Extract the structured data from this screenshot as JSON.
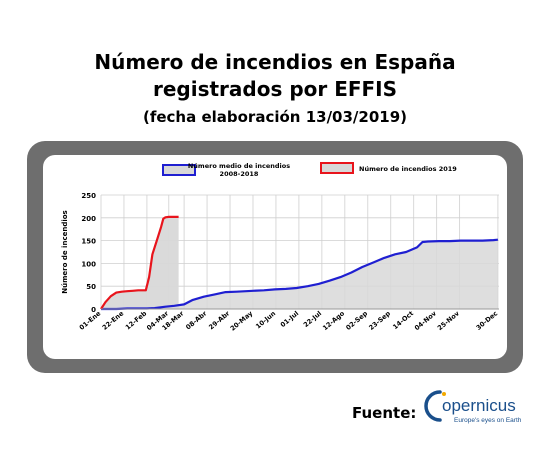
{
  "header": {
    "title_line1": "Número de incendios en España",
    "title_line2": "registrados por EFFIS",
    "subtitle": "(fecha elaboración 13/03/2019)"
  },
  "footer": {
    "source_label": "Fuente:",
    "logo_text": "opernicus",
    "logo_tagline": "Europe's eyes on Earth"
  },
  "colors": {
    "frame": "#6e6e6e",
    "mean_line": "#1f1fd1",
    "current_line": "#e8141c",
    "area_fill": "#d8d8d8",
    "logo_blue": "#1a4f8b"
  },
  "chart_data": {
    "type": "line",
    "ylabel": "Número  de incendios",
    "ylim": [
      0,
      250
    ],
    "yticks": [
      0,
      50,
      100,
      150,
      200,
      250
    ],
    "xlim": [
      1,
      365
    ],
    "xticks": [
      {
        "day": 1,
        "label": "01-Ene"
      },
      {
        "day": 22,
        "label": "22-Ene"
      },
      {
        "day": 43,
        "label": "12-Feb"
      },
      {
        "day": 63,
        "label": "04-Mar"
      },
      {
        "day": 77,
        "label": "18-Mar"
      },
      {
        "day": 98,
        "label": "08-Abr"
      },
      {
        "day": 119,
        "label": "29-Abr"
      },
      {
        "day": 140,
        "label": "20-May"
      },
      {
        "day": 161,
        "label": "10-Jun"
      },
      {
        "day": 182,
        "label": "01-Jul"
      },
      {
        "day": 203,
        "label": "22-Jul"
      },
      {
        "day": 224,
        "label": "12-Ago"
      },
      {
        "day": 245,
        "label": "02-Sep"
      },
      {
        "day": 266,
        "label": "23-Sep"
      },
      {
        "day": 287,
        "label": "14-Oct"
      },
      {
        "day": 308,
        "label": "04-Nov"
      },
      {
        "day": 329,
        "label": "25-Nov"
      },
      {
        "day": 364,
        "label": "30-Dec"
      }
    ],
    "grid": true,
    "legend_position": "top",
    "series": [
      {
        "name": "Número medio de incendios 2008-2018",
        "style": "area",
        "x": [
          1,
          15,
          25,
          35,
          43,
          50,
          60,
          68,
          77,
          85,
          95,
          105,
          115,
          125,
          140,
          150,
          160,
          170,
          180,
          190,
          200,
          210,
          220,
          230,
          240,
          250,
          260,
          270,
          280,
          290,
          295,
          300,
          310,
          320,
          330,
          340,
          350,
          360,
          364
        ],
        "values": [
          0,
          0,
          1,
          1,
          1,
          2,
          5,
          7,
          10,
          20,
          27,
          32,
          37,
          38,
          40,
          41,
          43,
          44,
          46,
          50,
          55,
          62,
          70,
          80,
          92,
          102,
          112,
          120,
          125,
          135,
          147,
          148,
          149,
          149,
          150,
          150,
          150,
          151,
          152
        ]
      },
      {
        "name": "Número de incendios 2019",
        "style": "area",
        "x": [
          1,
          5,
          10,
          15,
          20,
          25,
          30,
          35,
          40,
          42,
          45,
          48,
          52,
          56,
          58,
          60,
          63,
          68,
          72
        ],
        "values": [
          0,
          15,
          28,
          36,
          38,
          39,
          40,
          41,
          41,
          41,
          70,
          120,
          150,
          180,
          198,
          201,
          202,
          202,
          202
        ]
      }
    ]
  }
}
